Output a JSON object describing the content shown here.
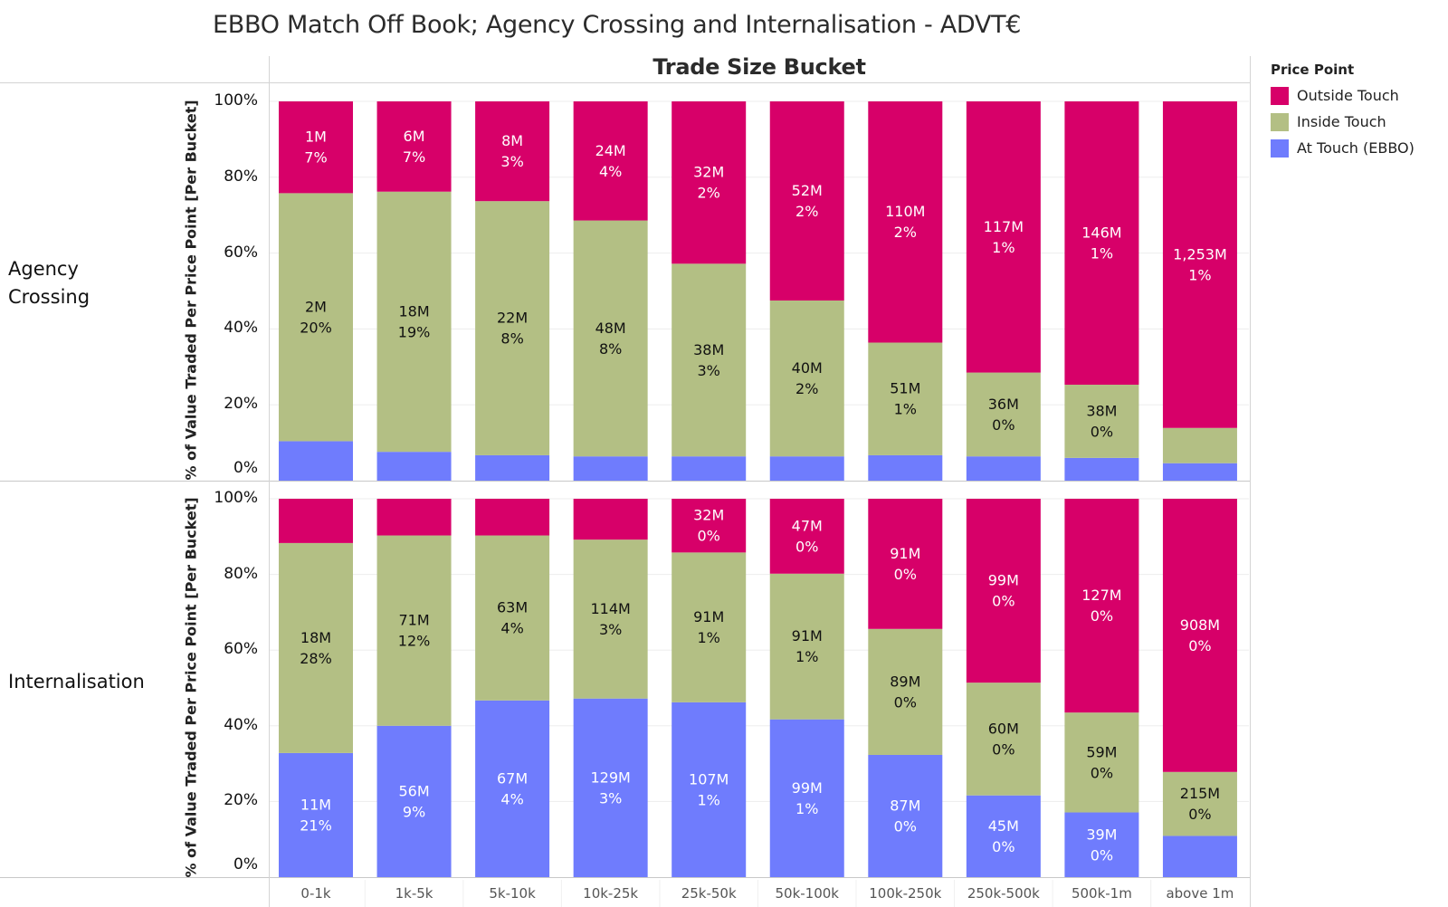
{
  "chart_data": {
    "type": "bar",
    "stacked": true,
    "normalized": true,
    "title": "EBBO Match Off Book; Agency Crossing and Internalisation - ADVT€",
    "column_header": "Trade Size Bucket",
    "ylabel": "% of Value Traded Per Price Point  [Per Bucket]",
    "ylim": [
      0,
      100
    ],
    "yticks": [
      "0%",
      "20%",
      "40%",
      "60%",
      "80%",
      "100%"
    ],
    "grid": true,
    "legend": {
      "title": "Price Point",
      "placement": "top-right",
      "entries": [
        {
          "name": "Outside Touch",
          "color": "#d70069"
        },
        {
          "name": "Inside Touch",
          "color": "#b3bf84"
        },
        {
          "name": "At Touch (EBBO)",
          "color": "#6f7cfd"
        }
      ]
    },
    "categories": [
      "0-1k",
      "1k-5k",
      "5k-10k",
      "10k-25k",
      "25k-50k",
      "50k-100k",
      "100k-250k",
      "250k-500k",
      "500k-1m",
      "above 1m"
    ],
    "panels": [
      {
        "name": "Agency Crossing",
        "label_lines": [
          "Agency",
          "Crossing"
        ],
        "series": [
          {
            "name": "At Touch (EBBO)",
            "values": [
              10.4,
              7.6,
              6.7,
              6.4,
              6.4,
              6.4,
              6.7,
              6.4,
              6.0,
              4.6
            ],
            "labels": [
              null,
              null,
              null,
              null,
              null,
              null,
              null,
              null,
              null,
              null
            ]
          },
          {
            "name": "Inside Touch",
            "values": [
              65.4,
              68.6,
              67.0,
              62.2,
              50.8,
              41.1,
              29.7,
              22.1,
              19.3,
              9.3
            ],
            "labels": [
              [
                "2M",
                "20%"
              ],
              [
                "18M",
                "19%"
              ],
              [
                "22M",
                "8%"
              ],
              [
                "48M",
                "8%"
              ],
              [
                "38M",
                "3%"
              ],
              [
                "40M",
                "2%"
              ],
              [
                "51M",
                "1%"
              ],
              [
                "36M",
                "0%"
              ],
              [
                "38M",
                "0%"
              ],
              null
            ]
          },
          {
            "name": "Outside Touch",
            "values": [
              24.2,
              23.8,
              26.3,
              31.4,
              42.8,
              52.5,
              63.6,
              71.5,
              74.7,
              86.1
            ],
            "labels": [
              [
                "1M",
                "7%"
              ],
              [
                "6M",
                "7%"
              ],
              [
                "8M",
                "3%"
              ],
              [
                "24M",
                "4%"
              ],
              [
                "32M",
                "2%"
              ],
              [
                "52M",
                "2%"
              ],
              [
                "110M",
                "2%"
              ],
              [
                "117M",
                "1%"
              ],
              [
                "146M",
                "1%"
              ],
              [
                "1,253M",
                "1%"
              ]
            ]
          }
        ]
      },
      {
        "name": "Internalisation",
        "label_lines": [
          "Internalisation"
        ],
        "series": [
          {
            "name": "At Touch (EBBO)",
            "values": [
              32.8,
              40.0,
              46.7,
              47.2,
              46.2,
              41.7,
              32.3,
              21.6,
              17.1,
              10.9
            ],
            "labels": [
              [
                "11M",
                "21%"
              ],
              [
                "56M",
                "9%"
              ],
              [
                "67M",
                "4%"
              ],
              [
                "129M",
                "3%"
              ],
              [
                "107M",
                "1%"
              ],
              [
                "99M",
                "1%"
              ],
              [
                "87M",
                "0%"
              ],
              [
                "45M",
                "0%"
              ],
              [
                "39M",
                "0%"
              ],
              null
            ]
          },
          {
            "name": "Inside Touch",
            "values": [
              55.5,
              50.3,
              43.6,
              42.0,
              39.6,
              38.5,
              33.3,
              29.8,
              26.4,
              16.9
            ],
            "labels": [
              [
                "18M",
                "28%"
              ],
              [
                "71M",
                "12%"
              ],
              [
                "63M",
                "4%"
              ],
              [
                "114M",
                "3%"
              ],
              [
                "91M",
                "1%"
              ],
              [
                "91M",
                "1%"
              ],
              [
                "89M",
                "0%"
              ],
              [
                "60M",
                "0%"
              ],
              [
                "59M",
                "0%"
              ],
              [
                "215M",
                "0%"
              ]
            ]
          },
          {
            "name": "Outside Touch",
            "values": [
              11.7,
              9.7,
              9.7,
              10.8,
              14.2,
              19.8,
              34.4,
              48.6,
              56.5,
              72.2
            ],
            "labels": [
              null,
              null,
              null,
              null,
              [
                "32M",
                "0%"
              ],
              [
                "47M",
                "0%"
              ],
              [
                "91M",
                "0%"
              ],
              [
                "99M",
                "0%"
              ],
              [
                "127M",
                "0%"
              ],
              [
                "908M",
                "0%"
              ]
            ]
          }
        ]
      }
    ]
  }
}
